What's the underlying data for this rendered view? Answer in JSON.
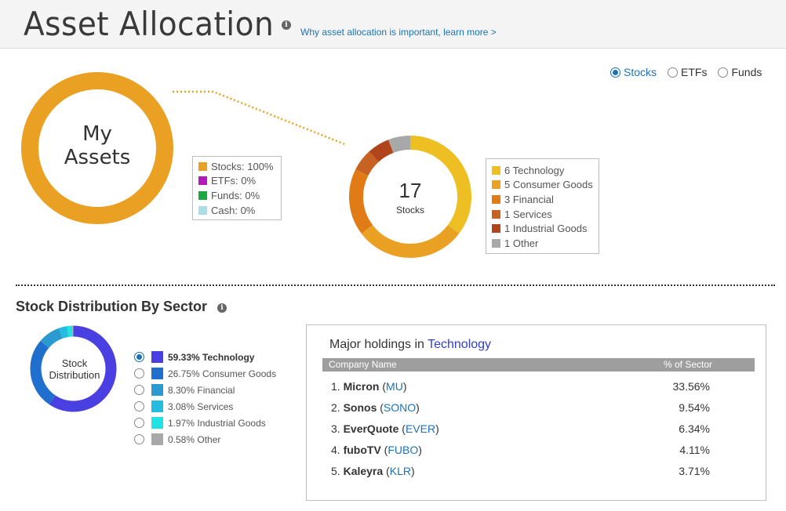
{
  "header": {
    "title": "Asset Allocation",
    "learn_link": "Why asset allocation is important, learn more >"
  },
  "view_toggle": {
    "options": [
      {
        "label": "Stocks",
        "selected": true
      },
      {
        "label": "ETFs",
        "selected": false
      },
      {
        "label": "Funds",
        "selected": false
      }
    ]
  },
  "assets": {
    "label_line1": "My",
    "label_line2": "Assets",
    "color": "#eaa023",
    "legend": [
      {
        "label": "Stocks: 100%",
        "color": "#eaa023",
        "percent": 100
      },
      {
        "label": "ETFs: 0%",
        "color": "#b41aba",
        "percent": 0
      },
      {
        "label": "Funds: 0%",
        "color": "#1aa843",
        "percent": 0
      },
      {
        "label": "Cash: 0%",
        "color": "#abdde8",
        "percent": 0
      }
    ]
  },
  "stocks_breakdown": {
    "count": "17",
    "count_label": "Stocks",
    "legend": [
      {
        "label": "6 Technology",
        "count": 6,
        "color": "#eebf22"
      },
      {
        "label": "5 Consumer Goods",
        "count": 5,
        "color": "#eaa023"
      },
      {
        "label": "3 Financial",
        "count": 3,
        "color": "#e17b15"
      },
      {
        "label": "1 Services",
        "count": 1,
        "color": "#c76223"
      },
      {
        "label": "1 Industrial Goods",
        "count": 1,
        "color": "#b0441a"
      },
      {
        "label": "1 Other",
        "count": 1,
        "color": "#a8a8a8"
      }
    ]
  },
  "sector_section": {
    "title": "Stock Distribution By Sector",
    "donut_label_line1": "Stock",
    "donut_label_line2": "Distribution",
    "sectors": [
      {
        "label": "59.33% Technology",
        "percent": 59.33,
        "color": "#4a3fe0",
        "selected": true
      },
      {
        "label": "26.75% Consumer Goods",
        "percent": 26.75,
        "color": "#1f6fcf",
        "selected": false
      },
      {
        "label": "8.30% Financial",
        "percent": 8.3,
        "color": "#2a9ad0",
        "selected": false
      },
      {
        "label": "3.08% Services",
        "percent": 3.08,
        "color": "#23bde0",
        "selected": false
      },
      {
        "label": "1.97% Industrial Goods",
        "percent": 1.97,
        "color": "#21e3e3",
        "selected": false
      },
      {
        "label": "0.58% Other",
        "percent": 0.58,
        "color": "#a8a8a8",
        "selected": false
      }
    ]
  },
  "holdings": {
    "title_prefix": "Major holdings in ",
    "title_sector": "Technology",
    "col_company": "Company Name",
    "col_pct": "% of Sector",
    "rows": [
      {
        "rank": "1.",
        "name": "Micron",
        "ticker": "MU",
        "pct": "33.56%"
      },
      {
        "rank": "2.",
        "name": "Sonos",
        "ticker": "SONO",
        "pct": "9.54%"
      },
      {
        "rank": "3.",
        "name": "EverQuote",
        "ticker": "EVER",
        "pct": "6.34%"
      },
      {
        "rank": "4.",
        "name": "fuboTV",
        "ticker": "FUBO",
        "pct": "4.11%"
      },
      {
        "rank": "5.",
        "name": "Kaleyra",
        "ticker": "KLR",
        "pct": "3.71%"
      }
    ]
  }
}
